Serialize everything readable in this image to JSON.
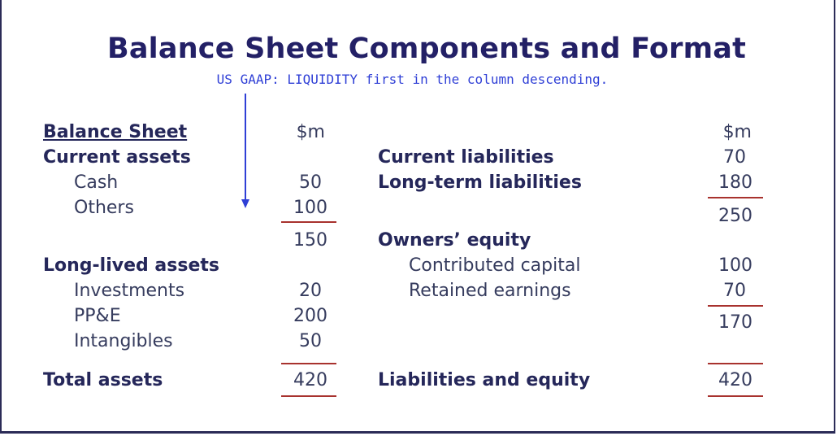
{
  "title": "Balance Sheet Components and Format",
  "subtitle": "US GAAP:  LIQUIDITY first in the column descending.",
  "left": {
    "header": "Balance Sheet",
    "unit": "$m",
    "current_assets": "Current assets",
    "cash_label": "Cash",
    "cash_value": "50",
    "others_label": "Others",
    "others_value": "100",
    "current_total": "150",
    "long_lived": "Long-lived assets",
    "investments_label": "Investments",
    "investments_value": "20",
    "ppe_label": "PP&E",
    "ppe_value": "200",
    "intangibles_label": "Intangibles",
    "intangibles_value": "50",
    "total_label": "Total assets",
    "total_value": "420"
  },
  "right": {
    "unit": "$m",
    "current_liab_label": "Current liabilities",
    "current_liab_value": "70",
    "longterm_liab_label": "Long-term liabilities",
    "longterm_liab_value": "180",
    "liab_total": "250",
    "equity_label": "Owners’ equity",
    "contributed_label": "Contributed capital",
    "contributed_value": "100",
    "retained_label": "Retained earnings",
    "retained_value": "70",
    "equity_total": "170",
    "total_label": "Liabilities and equity",
    "total_value": "420"
  },
  "colors": {
    "title": "#232066",
    "subtitle": "#2f3fd6",
    "rule": "#a8322e",
    "arrow": "#2f3fd6"
  }
}
